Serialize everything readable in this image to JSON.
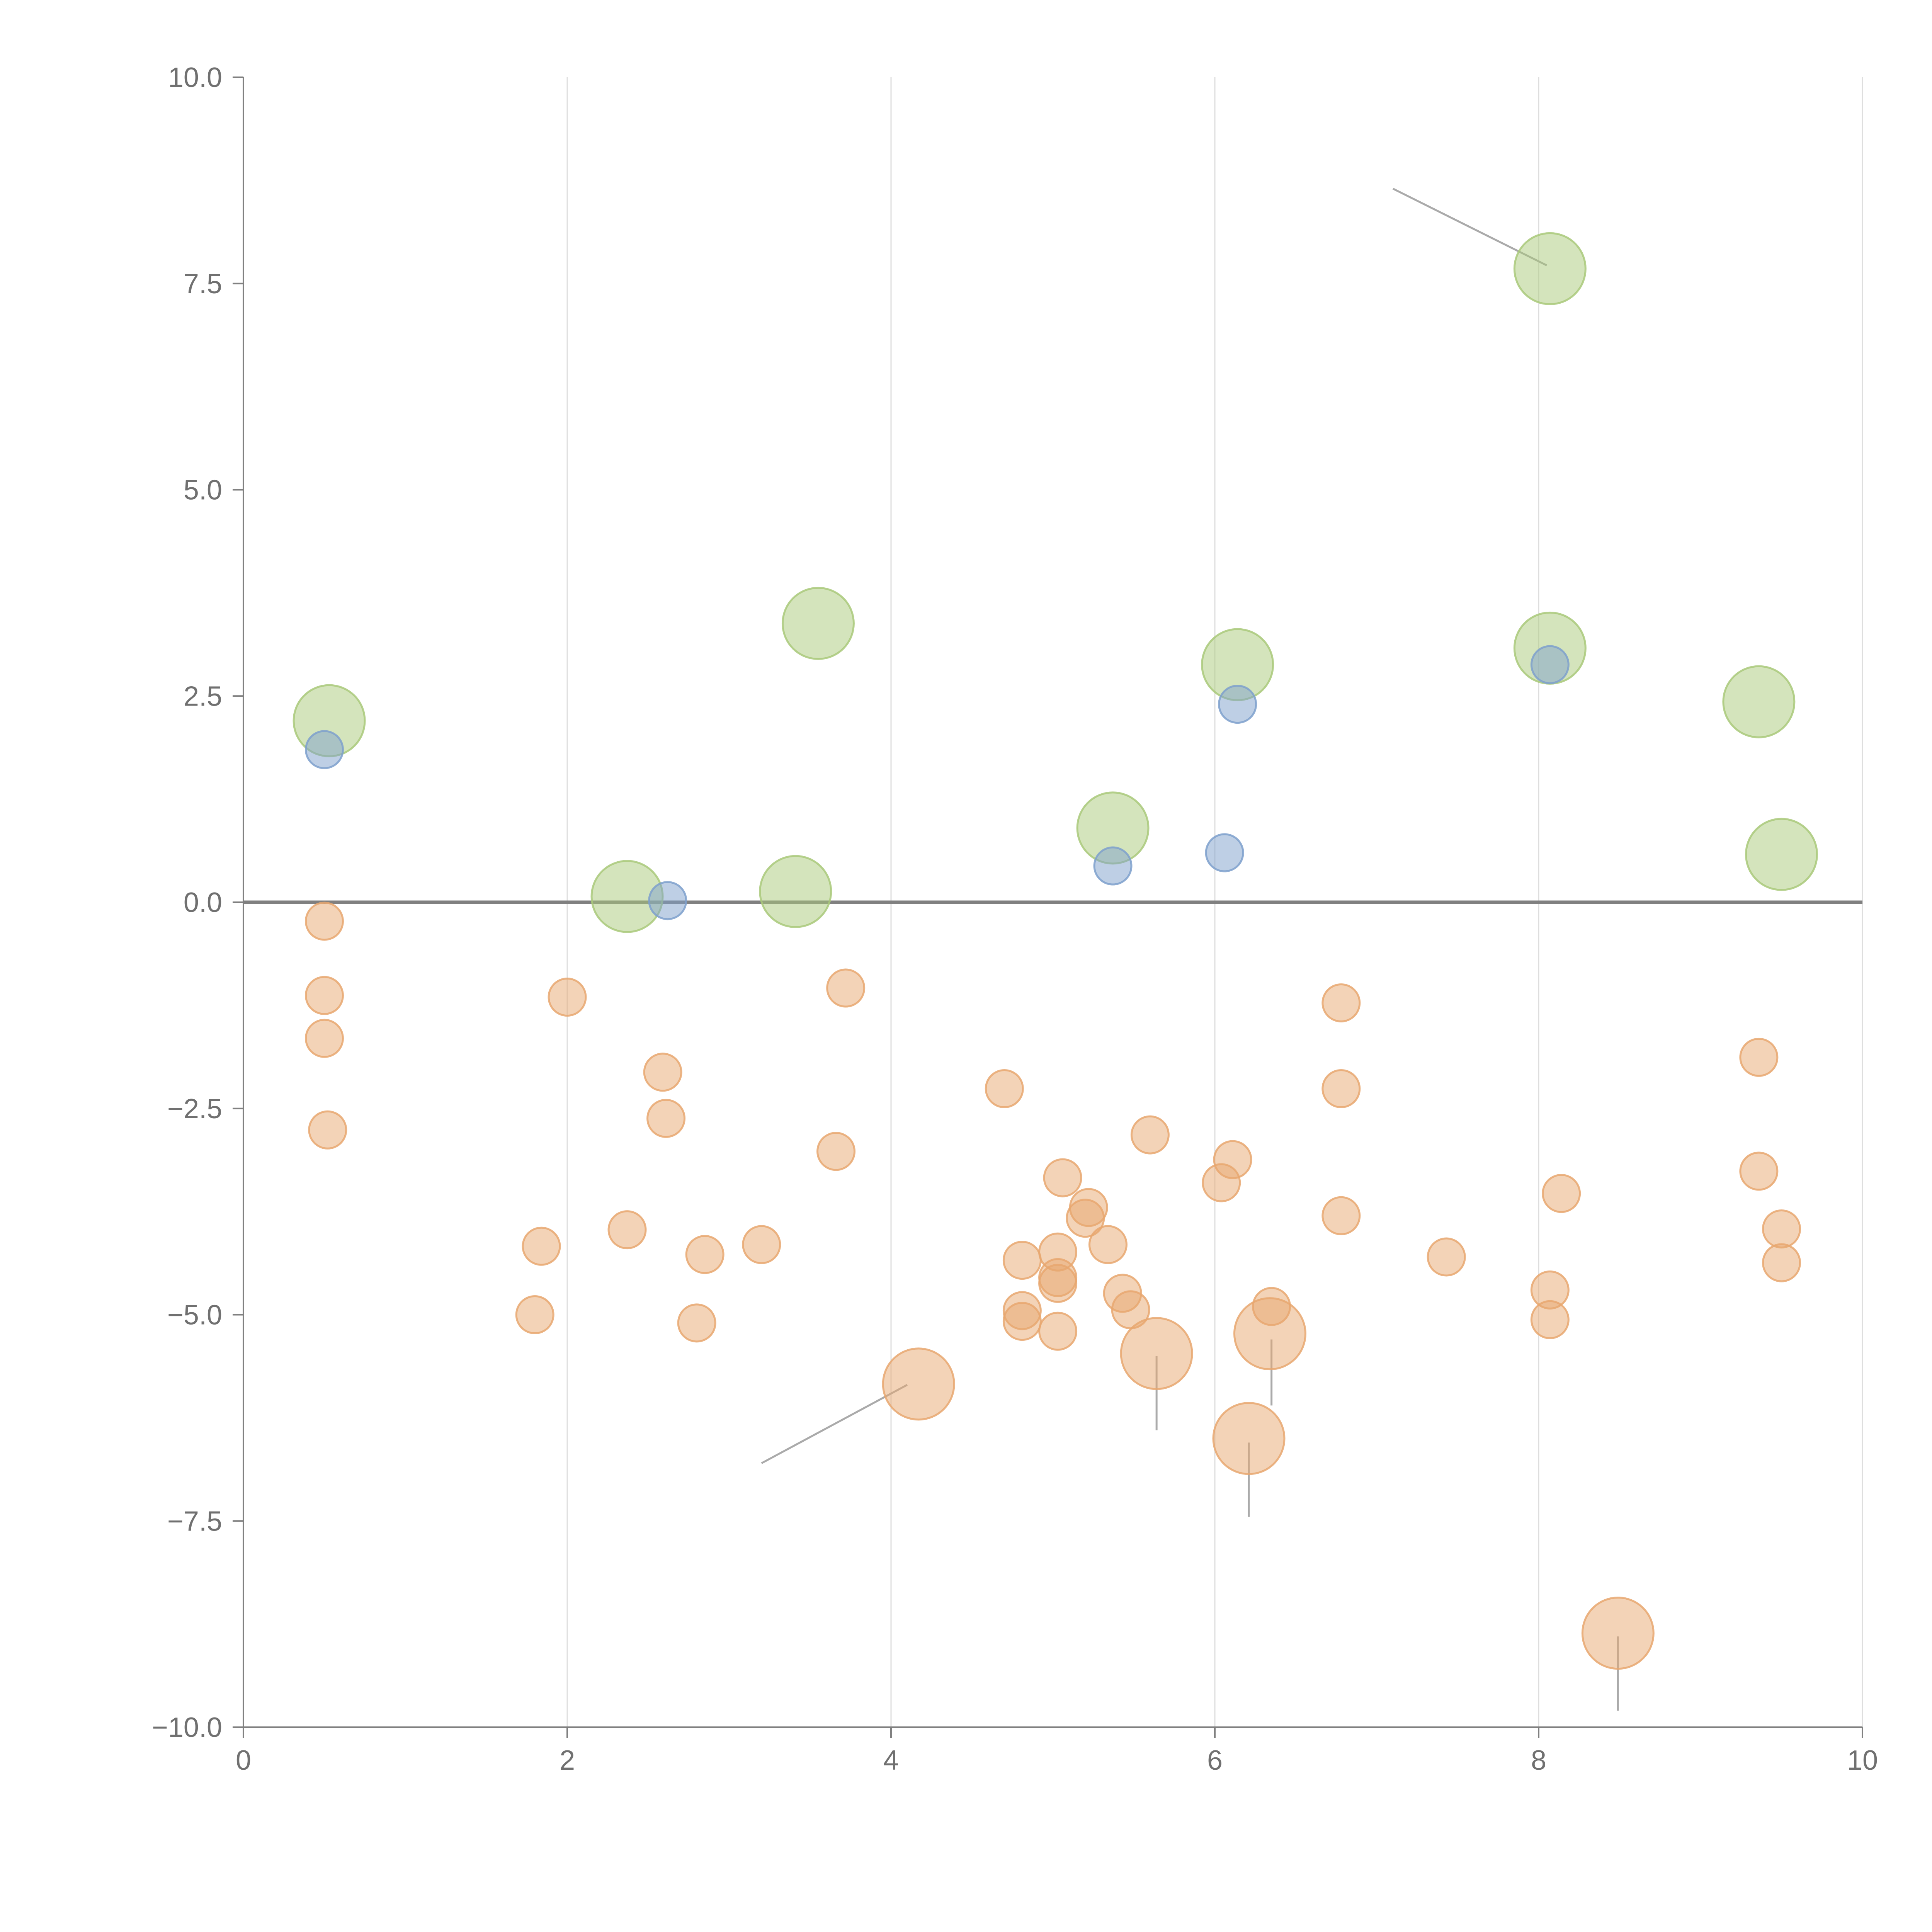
{
  "chart_data": {
    "type": "scatter",
    "title": "",
    "xlabel": "",
    "ylabel": "",
    "xlim": [
      0,
      10
    ],
    "ylim": [
      -10,
      10
    ],
    "x_ticks": [
      {
        "value": 0,
        "label": "0"
      },
      {
        "value": 2,
        "label": "2"
      },
      {
        "value": 4,
        "label": "4"
      },
      {
        "value": 6,
        "label": "6"
      },
      {
        "value": 8,
        "label": "8"
      },
      {
        "value": 10,
        "label": "10"
      }
    ],
    "y_ticks": [
      {
        "value": 10,
        "label": "10.0"
      },
      {
        "value": 7.5,
        "label": "7.5"
      },
      {
        "value": 5,
        "label": "5.0"
      },
      {
        "value": 2.5,
        "label": "2.5"
      },
      {
        "value": 0,
        "label": "0.0"
      },
      {
        "value": -2.5,
        "label": "−2.5"
      },
      {
        "value": -5,
        "label": "−5.0"
      },
      {
        "value": -7.5,
        "label": "−7.5"
      },
      {
        "value": -10,
        "label": "−10.0"
      }
    ],
    "grid": "vertical",
    "zero_line": true,
    "legend": "none",
    "series": [
      {
        "name": "green",
        "color": "#a9c97a",
        "size": "large",
        "points": [
          [
            0.53,
            2.2
          ],
          [
            2.37,
            0.07
          ],
          [
            3.41,
            0.13
          ],
          [
            3.55,
            3.38
          ],
          [
            5.37,
            0.9
          ],
          [
            6.14,
            2.88
          ],
          [
            8.07,
            3.08
          ],
          [
            8.07,
            7.68
          ],
          [
            9.36,
            2.43
          ],
          [
            9.5,
            0.58
          ]
        ]
      },
      {
        "name": "blue",
        "color": "#7ea0cc",
        "size": "small",
        "points": [
          [
            0.5,
            1.85
          ],
          [
            2.62,
            0.02
          ],
          [
            5.37,
            0.44
          ],
          [
            6.06,
            0.6
          ],
          [
            6.14,
            2.4
          ],
          [
            8.07,
            2.88
          ]
        ]
      },
      {
        "name": "orange",
        "color": "#e8a770",
        "size": "small",
        "points": [
          [
            0.5,
            -0.23
          ],
          [
            0.5,
            -1.13
          ],
          [
            0.5,
            -1.65
          ],
          [
            0.52,
            -2.76
          ],
          [
            2.0,
            -1.15
          ],
          [
            1.84,
            -4.17
          ],
          [
            1.8,
            -5.0
          ],
          [
            2.37,
            -3.97
          ],
          [
            2.59,
            -2.06
          ],
          [
            2.61,
            -2.62
          ],
          [
            2.85,
            -4.27
          ],
          [
            2.8,
            -5.1
          ],
          [
            3.2,
            -4.15
          ],
          [
            3.66,
            -3.02
          ],
          [
            3.72,
            -1.04
          ],
          [
            4.7,
            -2.26
          ],
          [
            4.81,
            -4.34
          ],
          [
            4.81,
            -4.95
          ],
          [
            4.81,
            -5.08
          ],
          [
            5.03,
            -4.24
          ],
          [
            5.03,
            -4.55
          ],
          [
            5.03,
            -4.62
          ],
          [
            5.03,
            -5.2
          ],
          [
            5.06,
            -3.34
          ],
          [
            5.22,
            -3.7
          ],
          [
            5.2,
            -3.83
          ],
          [
            5.34,
            -4.15
          ],
          [
            5.43,
            -4.74
          ],
          [
            5.48,
            -4.94
          ],
          [
            5.6,
            -2.82
          ],
          [
            6.04,
            -3.4
          ],
          [
            6.11,
            -3.12
          ],
          [
            6.35,
            -4.9
          ],
          [
            6.78,
            -1.22
          ],
          [
            6.78,
            -2.26
          ],
          [
            6.78,
            -3.8
          ],
          [
            7.43,
            -4.3
          ],
          [
            8.07,
            -4.7
          ],
          [
            8.07,
            -5.06
          ],
          [
            8.14,
            -3.53
          ],
          [
            9.36,
            -1.88
          ],
          [
            9.36,
            -3.26
          ],
          [
            9.5,
            -3.96
          ],
          [
            9.5,
            -4.37
          ]
        ]
      },
      {
        "name": "orange-large",
        "color": "#e8a770",
        "size": "large",
        "points": [
          [
            4.17,
            -5.84
          ],
          [
            5.64,
            -5.47
          ],
          [
            6.34,
            -5.23
          ],
          [
            6.21,
            -6.5
          ],
          [
            8.49,
            -8.86
          ]
        ]
      }
    ],
    "annotations": [
      {
        "label": "",
        "point": [
          8.05,
          7.72
        ],
        "text_at": [
          7.1,
          8.65
        ],
        "line_color": "#aaaaaa"
      },
      {
        "label": "",
        "point": [
          4.1,
          -5.85
        ],
        "text_at": [
          3.2,
          -6.8
        ],
        "line_color": "#aaaaaa"
      },
      {
        "label": "",
        "point": [
          5.64,
          -5.5
        ],
        "text_at": [
          5.64,
          -6.4
        ],
        "line_color": "#aaaaaa"
      },
      {
        "label": "",
        "point": [
          6.35,
          -5.3
        ],
        "text_at": [
          6.35,
          -6.1
        ],
        "line_color": "#aaaaaa"
      },
      {
        "label": "",
        "point": [
          6.21,
          -6.55
        ],
        "text_at": [
          6.21,
          -7.45
        ],
        "line_color": "#aaaaaa"
      },
      {
        "label": "",
        "point": [
          8.49,
          -8.9
        ],
        "text_at": [
          8.49,
          -9.8
        ],
        "line_color": "#aaaaaa"
      },
      {
        "label": "",
        "point": [
          3.45,
          0.13
        ],
        "text_at": [
          3.85,
          0.22
        ],
        "line_color": "#ffffff"
      },
      {
        "label": "",
        "point": [
          5.4,
          0.9
        ],
        "text_at": [
          5.9,
          1.05
        ],
        "line_color": "#ffffff"
      },
      {
        "label": "",
        "point": [
          8.1,
          3.1
        ],
        "text_at": [
          8.18,
          3.45
        ],
        "line_color": "#ffffff"
      },
      {
        "label": "",
        "point": [
          9.27,
          2.3
        ],
        "text_at": [
          9.4,
          2.47
        ],
        "line_color": "#ffffff"
      },
      {
        "label": "",
        "point": [
          9.3,
          0.37
        ],
        "text_at": [
          9.51,
          0.55
        ],
        "line_color": "#ffffff"
      }
    ],
    "point_labels": [
      {
        "text": "",
        "x": 4.0,
        "y": 4.15
      },
      {
        "text": "",
        "x": 3.9,
        "y": 0.25
      },
      {
        "text": "",
        "x": 8.0,
        "y": 4.7
      },
      {
        "text": "",
        "x": 6.0,
        "y": 1.05
      },
      {
        "text": "",
        "x": 6.0,
        "y": -6.45
      },
      {
        "text": "",
        "x": 8.8,
        "y": -0.05
      }
    ]
  }
}
